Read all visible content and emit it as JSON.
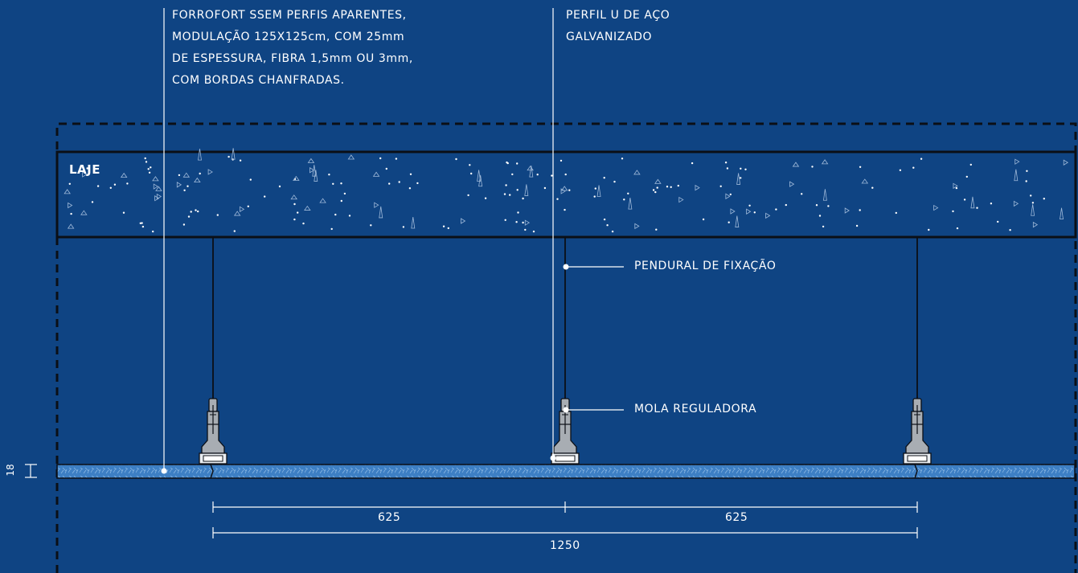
{
  "callouts": {
    "panel": {
      "lines": [
        "FORROFORT SSEM PERFIS APARENTES,",
        "MODULAÇÃO 125X125cm, COM 25mm",
        "DE ESPESSURA, FIBRA 1,5mm OU 3mm,",
        "COM BORDAS CHANFRADAS."
      ]
    },
    "profile": {
      "lines": [
        "PERFIL U DE AÇO",
        "GALVANIZADO"
      ]
    },
    "hanger": "PENDURAL DE FIXAÇÃO",
    "spring": "MOLA REGULADORA"
  },
  "slab": {
    "label": "LAJE"
  },
  "dimensions": {
    "thickness": "18",
    "left_span": "625",
    "right_span": "625",
    "total": "1250"
  },
  "colors": {
    "background": "#0f4483",
    "panel_fill": "#3d7fc4",
    "line": "#ffffff",
    "border_dark": "#08203f",
    "bracket": "#a8adb3"
  }
}
